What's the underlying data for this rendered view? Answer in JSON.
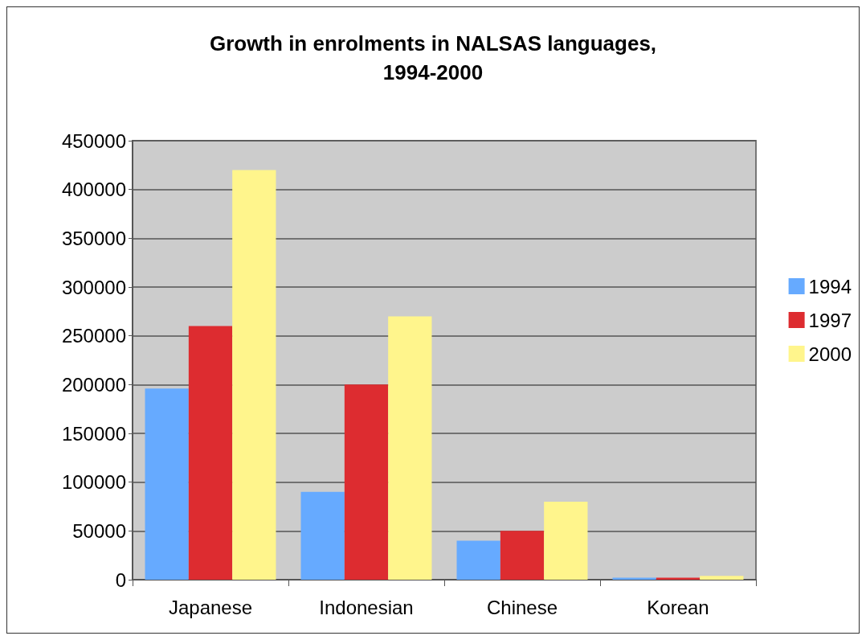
{
  "chart_data": {
    "type": "bar",
    "title": "Growth in enrolments in NALSAS languages,\n1994-2000",
    "categories": [
      "Japanese",
      "Indonesian",
      "Chinese",
      "Korean"
    ],
    "series": [
      {
        "name": "1994",
        "color": "#66aaff",
        "values": [
          196000,
          90000,
          40000,
          2000
        ]
      },
      {
        "name": "1997",
        "color": "#dd2c30",
        "values": [
          260000,
          200000,
          50000,
          2000
        ]
      },
      {
        "name": "2000",
        "color": "#fff58c",
        "values": [
          420000,
          270000,
          80000,
          4000
        ]
      }
    ],
    "ylim": [
      0,
      450000
    ],
    "yticks": [
      0,
      50000,
      100000,
      150000,
      200000,
      250000,
      300000,
      350000,
      400000,
      450000
    ],
    "grid": "y",
    "legend": "right"
  }
}
